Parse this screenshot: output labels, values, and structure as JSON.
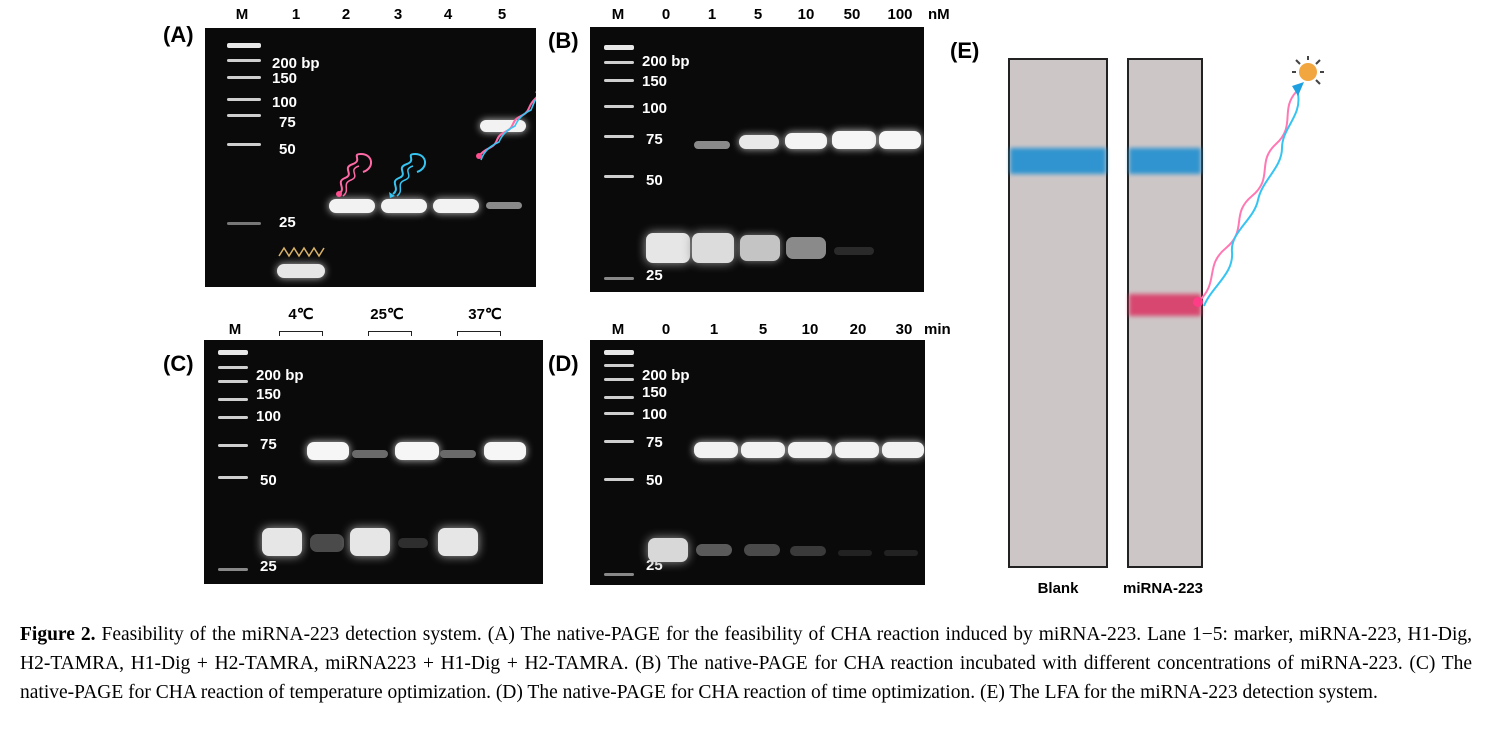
{
  "panels": {
    "A": {
      "letter": "(A)",
      "lanes": [
        "M",
        "1",
        "2",
        "3",
        "4",
        "5"
      ],
      "markers": [
        "200 bp",
        "150",
        "100",
        "75",
        "50",
        "25"
      ]
    },
    "B": {
      "letter": "(B)",
      "lanes": [
        "M",
        "0",
        "1",
        "5",
        "10",
        "50",
        "100"
      ],
      "unit": "nM",
      "markers": [
        "200 bp",
        "150",
        "100",
        "75",
        "50",
        "25"
      ]
    },
    "C": {
      "letter": "(C)",
      "lanes": [
        "M"
      ],
      "temperatures": [
        "4℃",
        "25℃",
        "37℃"
      ],
      "markers": [
        "200 bp",
        "150",
        "100",
        "75",
        "50",
        "25"
      ]
    },
    "D": {
      "letter": "(D)",
      "lanes": [
        "M",
        "0",
        "1",
        "5",
        "10",
        "20",
        "30"
      ],
      "unit": "min",
      "markers": [
        "200 bp",
        "150",
        "100",
        "75",
        "50",
        "25"
      ]
    },
    "E": {
      "letter": "(E)",
      "strips": [
        "Blank",
        "miRNA-223"
      ],
      "colors": {
        "control_line": "#1f8fd0",
        "test_line": "#d93a66",
        "strip_bg": "#cdc6c6"
      }
    }
  },
  "caption": {
    "label": "Figure 2.",
    "text": " Feasibility of the miRNA-223 detection system. (A) The native-PAGE for the feasibility of CHA reaction induced by miRNA-223. Lane 1−5: marker, miRNA-223, H1-Dig, H2-TAMRA, H1-Dig + H2-TAMRA, miRNA223 + H1-Dig + H2-TAMRA. (B) The native-PAGE for CHA reaction incubated with different concentrations of miRNA-223. (C) The native-PAGE for CHA reaction of temperature optimization. (D) The native-PAGE for CHA reaction of time optimization. (E) The LFA for the miRNA-223 detection system."
  }
}
